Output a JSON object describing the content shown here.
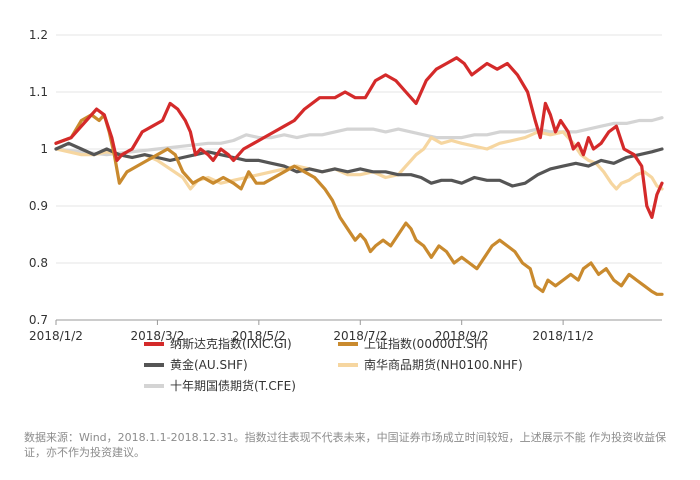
{
  "chart_data": {
    "type": "line",
    "title": "",
    "xlabel": "",
    "ylabel": "",
    "ylim": [
      0.7,
      1.2
    ],
    "yticks": [
      0.7,
      0.8,
      0.9,
      1,
      1.1,
      1.2
    ],
    "ytick_labels": [
      "0.7",
      "0.8",
      "0.9",
      "1",
      "1.1",
      "1.2"
    ],
    "xticks": [
      0,
      2,
      4,
      6,
      8,
      10
    ],
    "xtick_labels": [
      "2018/1/2",
      "2018/3/2",
      "2018/5/2",
      "2018/7/2",
      "2018/9/2",
      "2018/11/2"
    ],
    "x_range": [
      0,
      11.95
    ],
    "x_unit": "months since 2018/1/2",
    "grid": true,
    "legend_position": "bottom",
    "series": [
      {
        "name": "纳斯达克指数(IXIC.GI)",
        "color": "#d42a2a",
        "points": [
          [
            0,
            1.01
          ],
          [
            0.3,
            1.02
          ],
          [
            0.6,
            1.05
          ],
          [
            0.8,
            1.07
          ],
          [
            0.95,
            1.06
          ],
          [
            1.1,
            1.02
          ],
          [
            1.2,
            0.98
          ],
          [
            1.3,
            0.99
          ],
          [
            1.5,
            1.0
          ],
          [
            1.7,
            1.03
          ],
          [
            1.9,
            1.04
          ],
          [
            2.1,
            1.05
          ],
          [
            2.25,
            1.08
          ],
          [
            2.4,
            1.07
          ],
          [
            2.55,
            1.05
          ],
          [
            2.65,
            1.03
          ],
          [
            2.75,
            0.99
          ],
          [
            2.85,
            1.0
          ],
          [
            3.0,
            0.99
          ],
          [
            3.1,
            0.98
          ],
          [
            3.25,
            1.0
          ],
          [
            3.4,
            0.99
          ],
          [
            3.5,
            0.98
          ],
          [
            3.7,
            1.0
          ],
          [
            3.9,
            1.01
          ],
          [
            4.1,
            1.02
          ],
          [
            4.3,
            1.03
          ],
          [
            4.5,
            1.04
          ],
          [
            4.7,
            1.05
          ],
          [
            4.9,
            1.07
          ],
          [
            5.2,
            1.09
          ],
          [
            5.5,
            1.09
          ],
          [
            5.7,
            1.1
          ],
          [
            5.9,
            1.09
          ],
          [
            6.1,
            1.09
          ],
          [
            6.3,
            1.12
          ],
          [
            6.5,
            1.13
          ],
          [
            6.7,
            1.12
          ],
          [
            6.9,
            1.1
          ],
          [
            7.1,
            1.08
          ],
          [
            7.3,
            1.12
          ],
          [
            7.5,
            1.14
          ],
          [
            7.7,
            1.15
          ],
          [
            7.9,
            1.16
          ],
          [
            8.05,
            1.15
          ],
          [
            8.2,
            1.13
          ],
          [
            8.35,
            1.14
          ],
          [
            8.5,
            1.15
          ],
          [
            8.7,
            1.14
          ],
          [
            8.9,
            1.15
          ],
          [
            9.1,
            1.13
          ],
          [
            9.3,
            1.1
          ],
          [
            9.45,
            1.05
          ],
          [
            9.55,
            1.02
          ],
          [
            9.65,
            1.08
          ],
          [
            9.75,
            1.06
          ],
          [
            9.85,
            1.03
          ],
          [
            9.95,
            1.05
          ],
          [
            10.1,
            1.03
          ],
          [
            10.2,
            1.0
          ],
          [
            10.3,
            1.01
          ],
          [
            10.4,
            0.99
          ],
          [
            10.5,
            1.02
          ],
          [
            10.6,
            1.0
          ],
          [
            10.75,
            1.01
          ],
          [
            10.9,
            1.03
          ],
          [
            11.05,
            1.04
          ],
          [
            11.2,
            1.0
          ],
          [
            11.4,
            0.99
          ],
          [
            11.55,
            0.97
          ],
          [
            11.65,
            0.9
          ],
          [
            11.75,
            0.88
          ],
          [
            11.85,
            0.92
          ],
          [
            11.95,
            0.94
          ]
        ]
      },
      {
        "name": "上证指数(000001.SH)",
        "color": "#c98a2e",
        "points": [
          [
            0,
            1.01
          ],
          [
            0.3,
            1.02
          ],
          [
            0.5,
            1.05
          ],
          [
            0.7,
            1.06
          ],
          [
            0.85,
            1.05
          ],
          [
            0.95,
            1.06
          ],
          [
            1.05,
            1.03
          ],
          [
            1.15,
            0.99
          ],
          [
            1.25,
            0.94
          ],
          [
            1.4,
            0.96
          ],
          [
            1.6,
            0.97
          ],
          [
            1.8,
            0.98
          ],
          [
            2.0,
            0.99
          ],
          [
            2.2,
            1.0
          ],
          [
            2.35,
            0.99
          ],
          [
            2.5,
            0.96
          ],
          [
            2.7,
            0.94
          ],
          [
            2.9,
            0.95
          ],
          [
            3.1,
            0.94
          ],
          [
            3.3,
            0.95
          ],
          [
            3.5,
            0.94
          ],
          [
            3.65,
            0.93
          ],
          [
            3.8,
            0.96
          ],
          [
            3.95,
            0.94
          ],
          [
            4.1,
            0.94
          ],
          [
            4.3,
            0.95
          ],
          [
            4.5,
            0.96
          ],
          [
            4.7,
            0.97
          ],
          [
            4.9,
            0.96
          ],
          [
            5.1,
            0.95
          ],
          [
            5.3,
            0.93
          ],
          [
            5.45,
            0.91
          ],
          [
            5.6,
            0.88
          ],
          [
            5.75,
            0.86
          ],
          [
            5.9,
            0.84
          ],
          [
            6.0,
            0.85
          ],
          [
            6.1,
            0.84
          ],
          [
            6.2,
            0.82
          ],
          [
            6.3,
            0.83
          ],
          [
            6.45,
            0.84
          ],
          [
            6.6,
            0.83
          ],
          [
            6.75,
            0.85
          ],
          [
            6.9,
            0.87
          ],
          [
            7.0,
            0.86
          ],
          [
            7.1,
            0.84
          ],
          [
            7.25,
            0.83
          ],
          [
            7.4,
            0.81
          ],
          [
            7.55,
            0.83
          ],
          [
            7.7,
            0.82
          ],
          [
            7.85,
            0.8
          ],
          [
            8.0,
            0.81
          ],
          [
            8.15,
            0.8
          ],
          [
            8.3,
            0.79
          ],
          [
            8.45,
            0.81
          ],
          [
            8.6,
            0.83
          ],
          [
            8.75,
            0.84
          ],
          [
            8.9,
            0.83
          ],
          [
            9.05,
            0.82
          ],
          [
            9.2,
            0.8
          ],
          [
            9.35,
            0.79
          ],
          [
            9.45,
            0.76
          ],
          [
            9.6,
            0.75
          ],
          [
            9.7,
            0.77
          ],
          [
            9.85,
            0.76
          ],
          [
            10.0,
            0.77
          ],
          [
            10.15,
            0.78
          ],
          [
            10.3,
            0.77
          ],
          [
            10.4,
            0.79
          ],
          [
            10.55,
            0.8
          ],
          [
            10.7,
            0.78
          ],
          [
            10.85,
            0.79
          ],
          [
            11.0,
            0.77
          ],
          [
            11.15,
            0.76
          ],
          [
            11.3,
            0.78
          ],
          [
            11.45,
            0.77
          ],
          [
            11.6,
            0.76
          ],
          [
            11.75,
            0.75
          ],
          [
            11.85,
            0.745
          ],
          [
            11.95,
            0.745
          ]
        ]
      },
      {
        "name": "黄金(AU.SHF)",
        "color": "#555555",
        "points": [
          [
            0,
            1.0
          ],
          [
            0.25,
            1.01
          ],
          [
            0.5,
            1.0
          ],
          [
            0.75,
            0.99
          ],
          [
            1.0,
            1.0
          ],
          [
            1.25,
            0.99
          ],
          [
            1.5,
            0.985
          ],
          [
            1.75,
            0.99
          ],
          [
            2.0,
            0.985
          ],
          [
            2.25,
            0.98
          ],
          [
            2.5,
            0.985
          ],
          [
            2.75,
            0.99
          ],
          [
            3.0,
            0.995
          ],
          [
            3.25,
            0.99
          ],
          [
            3.5,
            0.985
          ],
          [
            3.75,
            0.98
          ],
          [
            4.0,
            0.98
          ],
          [
            4.25,
            0.975
          ],
          [
            4.5,
            0.97
          ],
          [
            4.75,
            0.96
          ],
          [
            5.0,
            0.965
          ],
          [
            5.25,
            0.96
          ],
          [
            5.5,
            0.965
          ],
          [
            5.75,
            0.96
          ],
          [
            6.0,
            0.965
          ],
          [
            6.25,
            0.96
          ],
          [
            6.5,
            0.96
          ],
          [
            6.75,
            0.955
          ],
          [
            7.0,
            0.955
          ],
          [
            7.2,
            0.95
          ],
          [
            7.4,
            0.94
          ],
          [
            7.6,
            0.945
          ],
          [
            7.8,
            0.945
          ],
          [
            8.0,
            0.94
          ],
          [
            8.25,
            0.95
          ],
          [
            8.5,
            0.945
          ],
          [
            8.75,
            0.945
          ],
          [
            9.0,
            0.935
          ],
          [
            9.25,
            0.94
          ],
          [
            9.5,
            0.955
          ],
          [
            9.75,
            0.965
          ],
          [
            10.0,
            0.97
          ],
          [
            10.25,
            0.975
          ],
          [
            10.5,
            0.97
          ],
          [
            10.75,
            0.98
          ],
          [
            11.0,
            0.975
          ],
          [
            11.25,
            0.985
          ],
          [
            11.5,
            0.99
          ],
          [
            11.75,
            0.995
          ],
          [
            11.95,
            1.0
          ]
        ]
      },
      {
        "name": "南华商品期货(NH0100.NHF)",
        "color": "#f6d6a0",
        "points": [
          [
            0,
            1.0
          ],
          [
            0.25,
            0.995
          ],
          [
            0.5,
            0.99
          ],
          [
            0.75,
            0.99
          ],
          [
            1.0,
            0.995
          ],
          [
            1.25,
            0.99
          ],
          [
            1.5,
            0.985
          ],
          [
            1.75,
            0.99
          ],
          [
            2.0,
            0.98
          ],
          [
            2.25,
            0.965
          ],
          [
            2.5,
            0.95
          ],
          [
            2.65,
            0.93
          ],
          [
            2.8,
            0.945
          ],
          [
            3.0,
            0.95
          ],
          [
            3.25,
            0.94
          ],
          [
            3.5,
            0.945
          ],
          [
            3.75,
            0.95
          ],
          [
            4.0,
            0.955
          ],
          [
            4.25,
            0.96
          ],
          [
            4.5,
            0.965
          ],
          [
            4.75,
            0.97
          ],
          [
            5.0,
            0.965
          ],
          [
            5.25,
            0.96
          ],
          [
            5.5,
            0.965
          ],
          [
            5.75,
            0.955
          ],
          [
            6.0,
            0.955
          ],
          [
            6.25,
            0.96
          ],
          [
            6.5,
            0.95
          ],
          [
            6.75,
            0.955
          ],
          [
            6.9,
            0.97
          ],
          [
            7.0,
            0.98
          ],
          [
            7.1,
            0.99
          ],
          [
            7.25,
            1.0
          ],
          [
            7.4,
            1.02
          ],
          [
            7.6,
            1.01
          ],
          [
            7.8,
            1.015
          ],
          [
            8.0,
            1.01
          ],
          [
            8.25,
            1.005
          ],
          [
            8.5,
            1.0
          ],
          [
            8.75,
            1.01
          ],
          [
            9.0,
            1.015
          ],
          [
            9.25,
            1.02
          ],
          [
            9.5,
            1.03
          ],
          [
            9.75,
            1.025
          ],
          [
            10.0,
            1.03
          ],
          [
            10.2,
            1.01
          ],
          [
            10.35,
            0.99
          ],
          [
            10.5,
            0.98
          ],
          [
            10.65,
            0.975
          ],
          [
            10.8,
            0.96
          ],
          [
            10.95,
            0.94
          ],
          [
            11.05,
            0.93
          ],
          [
            11.15,
            0.94
          ],
          [
            11.3,
            0.945
          ],
          [
            11.45,
            0.955
          ],
          [
            11.6,
            0.96
          ],
          [
            11.75,
            0.95
          ],
          [
            11.85,
            0.935
          ],
          [
            11.95,
            0.93
          ]
        ]
      },
      {
        "name": "十年期国债期货(T.CFE)",
        "color": "#d4d4d4",
        "points": [
          [
            0,
            1.0
          ],
          [
            0.5,
            0.995
          ],
          [
            1.0,
            0.99
          ],
          [
            1.5,
            0.995
          ],
          [
            2.0,
            1.0
          ],
          [
            2.5,
            1.005
          ],
          [
            3.0,
            1.01
          ],
          [
            3.25,
            1.01
          ],
          [
            3.5,
            1.015
          ],
          [
            3.75,
            1.025
          ],
          [
            4.0,
            1.02
          ],
          [
            4.25,
            1.02
          ],
          [
            4.5,
            1.025
          ],
          [
            4.75,
            1.02
          ],
          [
            5.0,
            1.025
          ],
          [
            5.25,
            1.025
          ],
          [
            5.5,
            1.03
          ],
          [
            5.75,
            1.035
          ],
          [
            6.0,
            1.035
          ],
          [
            6.25,
            1.035
          ],
          [
            6.5,
            1.03
          ],
          [
            6.75,
            1.035
          ],
          [
            7.0,
            1.03
          ],
          [
            7.25,
            1.025
          ],
          [
            7.5,
            1.02
          ],
          [
            7.75,
            1.02
          ],
          [
            8.0,
            1.02
          ],
          [
            8.25,
            1.025
          ],
          [
            8.5,
            1.025
          ],
          [
            8.75,
            1.03
          ],
          [
            9.0,
            1.03
          ],
          [
            9.25,
            1.03
          ],
          [
            9.5,
            1.035
          ],
          [
            9.75,
            1.03
          ],
          [
            10.0,
            1.03
          ],
          [
            10.25,
            1.03
          ],
          [
            10.5,
            1.035
          ],
          [
            10.75,
            1.04
          ],
          [
            11.0,
            1.045
          ],
          [
            11.25,
            1.045
          ],
          [
            11.5,
            1.05
          ],
          [
            11.75,
            1.05
          ],
          [
            11.95,
            1.055
          ]
        ]
      }
    ]
  },
  "footnote": "数据来源：Wind，2018.1.1-2018.12.31。指数过往表现不代表未来，中国证券市场成立时间较短，上述展示不能  作为投资收益保证，亦不作为投资建议。"
}
